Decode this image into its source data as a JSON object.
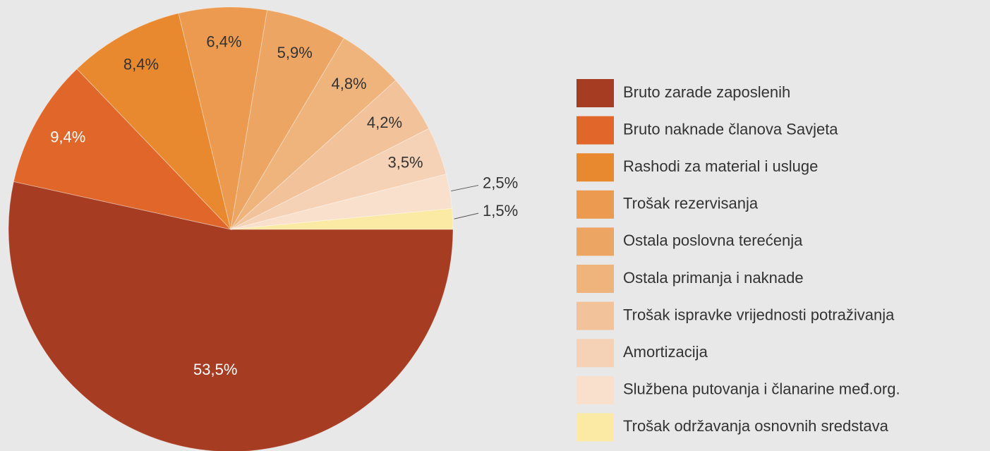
{
  "chart_data": {
    "type": "pie",
    "categories": [
      "Bruto zarade zaposlenih",
      "Bruto naknade članova Savjeta",
      "Rashodi za material i usluge",
      "Trošak rezervisanja",
      "Ostala poslovna terećenja",
      "Ostala primanja i naknade",
      "Trošak ispravke vrijednosti potraživanja",
      "Amortizacija",
      "Službena putovanja i članarine međ.org.",
      "Trošak održavanja osnovnih sredstava"
    ],
    "values": [
      53.5,
      9.4,
      8.4,
      6.4,
      5.9,
      4.8,
      4.2,
      3.5,
      2.5,
      1.5
    ],
    "value_labels": [
      "53,5%",
      "9,4%",
      "8,4%",
      "6,4%",
      "5,9%",
      "4,8%",
      "4,2%",
      "3,5%",
      "2,5%",
      "1,5%"
    ],
    "colors": [
      "#a63c22",
      "#e0662a",
      "#e8892f",
      "#eb9a50",
      "#eda564",
      "#efb47c",
      "#f2c29a",
      "#f5d2b5",
      "#f8e0cd",
      "#fbeaa3"
    ]
  }
}
